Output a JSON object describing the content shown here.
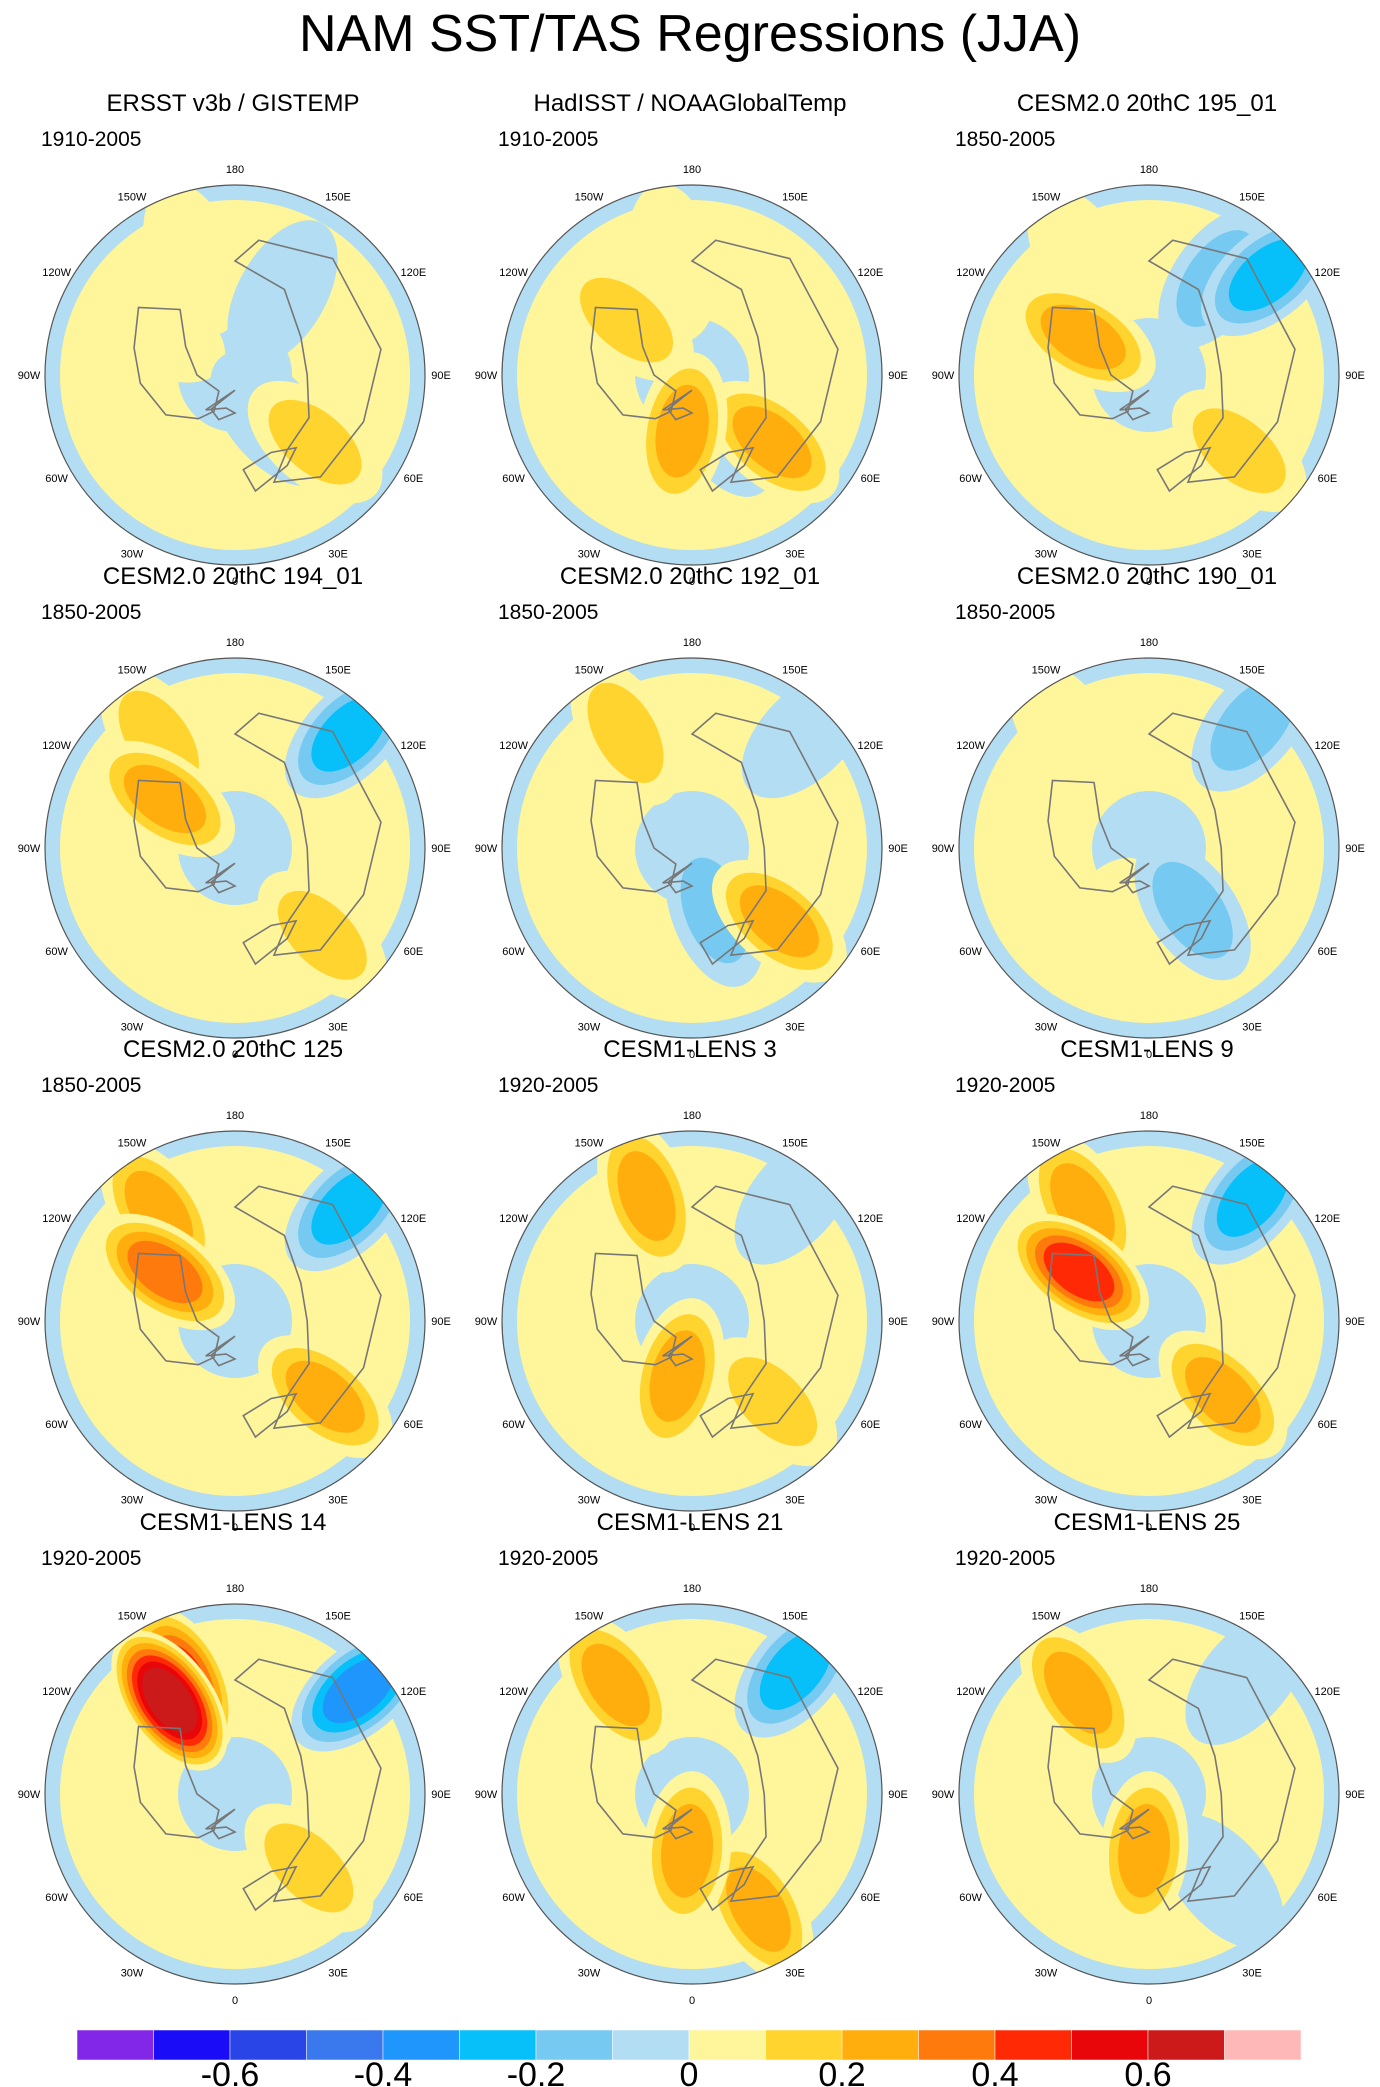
{
  "title": "NAM SST/TAS Regressions (JJA)",
  "colors": {
    "land": "#ffffff",
    "coast": "#777777",
    "outline": "#555555",
    "zero_band": "#fff59a",
    "near_zero_neg": "#b3ddf2"
  },
  "chart_data": {
    "type": "contour-map-grid",
    "projection": "North polar stereographic",
    "longitude_labels": [
      "180",
      "150E",
      "120E",
      "90E",
      "60E",
      "30E",
      "0",
      "30W",
      "60W",
      "90W",
      "120W",
      "150W"
    ],
    "colorbar": {
      "levels": [
        -0.7,
        -0.6,
        -0.5,
        -0.4,
        -0.3,
        -0.2,
        -0.1,
        0,
        0.1,
        0.2,
        0.3,
        0.4,
        0.5,
        0.6,
        0.7
      ],
      "colors": [
        "#8226e8",
        "#1b0cf7",
        "#2a45e7",
        "#3a78ee",
        "#1e96fb",
        "#07c0f9",
        "#76c9f1",
        "#b3ddf2",
        "#fff59a",
        "#ffd42e",
        "#ffae0e",
        "#ff7a0c",
        "#ff2a05",
        "#e8060a",
        "#cc1a1a",
        "#ffb8b8"
      ],
      "tick_labels": [
        {
          "value": -0.6,
          "label": "-0.6"
        },
        {
          "value": -0.4,
          "label": "-0.4"
        },
        {
          "value": -0.2,
          "label": "-0.2"
        },
        {
          "value": 0,
          "label": "0"
        },
        {
          "value": 0.2,
          "label": "0.2"
        },
        {
          "value": 0.4,
          "label": "0.4"
        },
        {
          "value": 0.6,
          "label": "0.6"
        }
      ]
    },
    "panels": [
      {
        "title": "ERSST v3b / GISTEMP",
        "period": "1910-2005",
        "blobs": [
          {
            "lon": 50,
            "r": 0.55,
            "v": 0.2
          },
          {
            "lon": 40,
            "r": 0.3,
            "v": -0.15
          },
          {
            "lon": 200,
            "r": 0.65,
            "v": 0.1
          },
          {
            "lon": 150,
            "r": 0.5,
            "v": -0.1
          },
          {
            "lon": 240,
            "r": 0.5,
            "v": 0.1
          }
        ]
      },
      {
        "title": "HadISST / NOAAGlobalTemp",
        "period": "1910-2005",
        "blobs": [
          {
            "lon": 50,
            "r": 0.55,
            "v": 0.25
          },
          {
            "lon": 30,
            "r": 0.3,
            "v": -0.15
          },
          {
            "lon": 350,
            "r": 0.3,
            "v": 0.3
          },
          {
            "lon": 190,
            "r": 0.6,
            "v": 0.1
          },
          {
            "lon": 230,
            "r": 0.45,
            "v": 0.2
          }
        ]
      },
      {
        "title": "CESM2.0 20thC 195_01",
        "period": "1850-2005",
        "blobs": [
          {
            "lon": 130,
            "r": 0.82,
            "v": -0.3
          },
          {
            "lon": 145,
            "r": 0.62,
            "v": -0.2
          },
          {
            "lon": 50,
            "r": 0.62,
            "v": 0.2
          },
          {
            "lon": 210,
            "r": 0.7,
            "v": 0.15
          },
          {
            "lon": 240,
            "r": 0.4,
            "v": 0.25
          }
        ]
      },
      {
        "title": "CESM2.0 20thC 194_01",
        "period": "1850-2005",
        "blobs": [
          {
            "lon": 135,
            "r": 0.85,
            "v": -0.3
          },
          {
            "lon": 45,
            "r": 0.65,
            "v": 0.2
          },
          {
            "lon": 215,
            "r": 0.7,
            "v": 0.2
          },
          {
            "lon": 235,
            "r": 0.45,
            "v": 0.35
          }
        ]
      },
      {
        "title": "CESM2.0 20thC 192_01",
        "period": "1850-2005",
        "blobs": [
          {
            "lon": 135,
            "r": 0.85,
            "v": -0.15
          },
          {
            "lon": 50,
            "r": 0.6,
            "v": 0.3
          },
          {
            "lon": 20,
            "r": 0.35,
            "v": -0.2
          },
          {
            "lon": 210,
            "r": 0.7,
            "v": 0.2
          }
        ]
      },
      {
        "title": "CESM2.0 20thC 190_01",
        "period": "1850-2005",
        "blobs": [
          {
            "lon": 140,
            "r": 0.85,
            "v": -0.2
          },
          {
            "lon": 35,
            "r": 0.4,
            "v": -0.2
          },
          {
            "lon": 330,
            "r": 0.5,
            "v": 0.15
          },
          {
            "lon": 215,
            "r": 0.75,
            "v": 0.1
          }
        ]
      },
      {
        "title": "CESM2.0 20thC 125",
        "period": "1850-2005",
        "blobs": [
          {
            "lon": 135,
            "r": 0.85,
            "v": -0.3
          },
          {
            "lon": 50,
            "r": 0.62,
            "v": 0.25
          },
          {
            "lon": 215,
            "r": 0.7,
            "v": 0.25
          },
          {
            "lon": 235,
            "r": 0.45,
            "v": 0.4
          }
        ]
      },
      {
        "title": "CESM1-LENS 3",
        "period": "1920-2005",
        "blobs": [
          {
            "lon": 140,
            "r": 0.85,
            "v": -0.15
          },
          {
            "lon": 200,
            "r": 0.7,
            "v": 0.3
          },
          {
            "lon": 45,
            "r": 0.6,
            "v": 0.2
          },
          {
            "lon": 345,
            "r": 0.3,
            "v": 0.35
          }
        ]
      },
      {
        "title": "CESM1-LENS 9",
        "period": "1920-2005",
        "blobs": [
          {
            "lon": 140,
            "r": 0.85,
            "v": -0.35
          },
          {
            "lon": 210,
            "r": 0.7,
            "v": 0.3
          },
          {
            "lon": 45,
            "r": 0.55,
            "v": 0.3
          },
          {
            "lon": 235,
            "r": 0.45,
            "v": 0.45
          }
        ]
      },
      {
        "title": "CESM1-LENS 14",
        "period": "1920-2005",
        "blobs": [
          {
            "lon": 130,
            "r": 0.85,
            "v": -0.4
          },
          {
            "lon": 205,
            "r": 0.65,
            "v": 0.45
          },
          {
            "lon": 215,
            "r": 0.6,
            "v": 0.7
          },
          {
            "lon": 45,
            "r": 0.55,
            "v": 0.2
          }
        ]
      },
      {
        "title": "CESM1-LENS 21",
        "period": "1920-2005",
        "blobs": [
          {
            "lon": 140,
            "r": 0.85,
            "v": -0.25
          },
          {
            "lon": 215,
            "r": 0.7,
            "v": 0.3
          },
          {
            "lon": 30,
            "r": 0.7,
            "v": 0.25
          },
          {
            "lon": 355,
            "r": 0.3,
            "v": 0.35
          }
        ]
      },
      {
        "title": "CESM1-LENS 25",
        "period": "1920-2005",
        "blobs": [
          {
            "lon": 140,
            "r": 0.8,
            "v": -0.15
          },
          {
            "lon": 215,
            "r": 0.65,
            "v": 0.35
          },
          {
            "lon": 40,
            "r": 0.6,
            "v": -0.15
          },
          {
            "lon": 355,
            "r": 0.3,
            "v": 0.3
          }
        ]
      }
    ]
  }
}
